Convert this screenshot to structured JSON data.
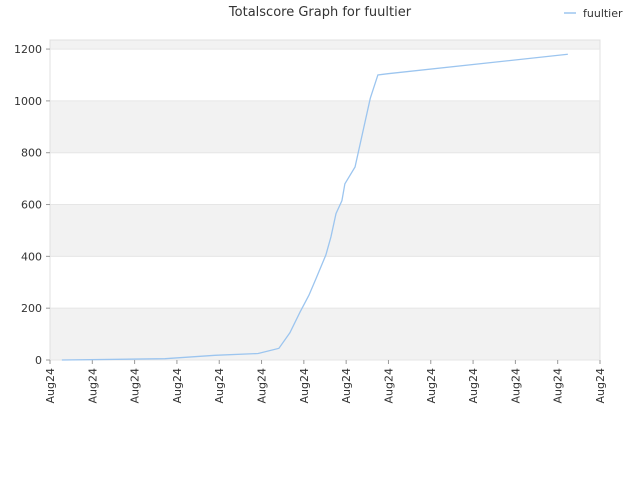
{
  "chart_data": {
    "type": "line",
    "title": "Totalscore Graph for fuultier",
    "x": [
      0.28,
      2.72,
      3.9,
      4.92,
      5.41,
      5.67,
      5.91,
      6.12,
      6.29,
      6.52,
      6.64,
      6.76,
      6.9,
      6.97,
      7.21,
      7.57,
      7.75,
      7.99,
      12.24
    ],
    "series": [
      {
        "name": "fuultier",
        "color": "#9cc5ef",
        "values": [
          0,
          5,
          18,
          25,
          45,
          105,
          185,
          250,
          315,
          405,
          475,
          565,
          615,
          680,
          745,
          1010,
          1100,
          1105,
          1180
        ]
      }
    ],
    "xlim": [
      0,
      13
    ],
    "xticks": [
      {
        "value": 0,
        "label": "Aug24"
      },
      {
        "value": 1,
        "label": "Aug24"
      },
      {
        "value": 2,
        "label": "Aug24"
      },
      {
        "value": 3,
        "label": "Aug24"
      },
      {
        "value": 4,
        "label": "Aug24"
      },
      {
        "value": 5,
        "label": "Aug24"
      },
      {
        "value": 6,
        "label": "Aug24"
      },
      {
        "value": 7,
        "label": "Aug24"
      },
      {
        "value": 8,
        "label": "Aug24"
      },
      {
        "value": 9,
        "label": "Aug24"
      },
      {
        "value": 10,
        "label": "Aug24"
      },
      {
        "value": 11,
        "label": "Aug24"
      },
      {
        "value": 12,
        "label": "Aug24"
      },
      {
        "value": 13,
        "label": "Aug24"
      }
    ],
    "ylim": [
      0,
      1235
    ],
    "yticks": [
      0,
      200,
      400,
      600,
      800,
      1000,
      1200
    ],
    "grid": true,
    "legend": "top-right"
  }
}
